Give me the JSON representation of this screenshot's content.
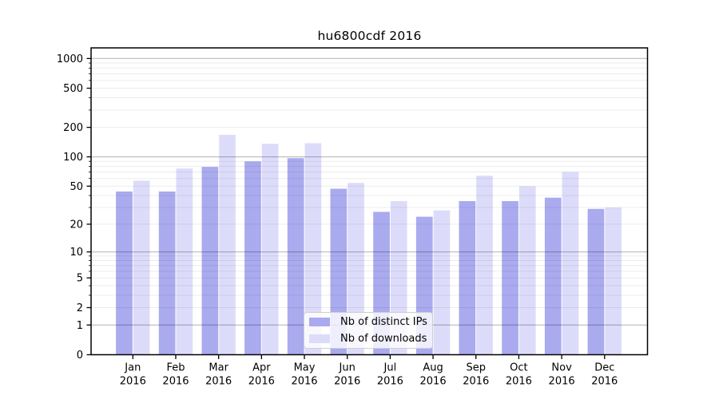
{
  "title": "hu6800cdf 2016",
  "chart_data": {
    "type": "bar",
    "title": "hu6800cdf 2016",
    "yscale": "log1p",
    "grid": true,
    "legend_position": "lower-center",
    "ylim": [
      0,
      1285
    ],
    "yticks": [
      0,
      1,
      2,
      5,
      10,
      20,
      50,
      100,
      200,
      500,
      1000
    ],
    "categories": [
      {
        "month": "Jan",
        "year": "2016"
      },
      {
        "month": "Feb",
        "year": "2016"
      },
      {
        "month": "Mar",
        "year": "2016"
      },
      {
        "month": "Apr",
        "year": "2016"
      },
      {
        "month": "May",
        "year": "2016"
      },
      {
        "month": "Jun",
        "year": "2016"
      },
      {
        "month": "Jul",
        "year": "2016"
      },
      {
        "month": "Aug",
        "year": "2016"
      },
      {
        "month": "Sep",
        "year": "2016"
      },
      {
        "month": "Oct",
        "year": "2016"
      },
      {
        "month": "Nov",
        "year": "2016"
      },
      {
        "month": "Dec",
        "year": "2016"
      }
    ],
    "series": [
      {
        "name": "Nb of distinct IPs",
        "color": "#aaaaef",
        "values": [
          44,
          44,
          79,
          90,
          97,
          47,
          27,
          24,
          35,
          35,
          38,
          29
        ]
      },
      {
        "name": "Nb of downloads",
        "color": "#dcdcfa",
        "values": [
          57,
          76,
          168,
          136,
          138,
          54,
          35,
          28,
          64,
          50,
          70,
          30
        ]
      }
    ]
  }
}
